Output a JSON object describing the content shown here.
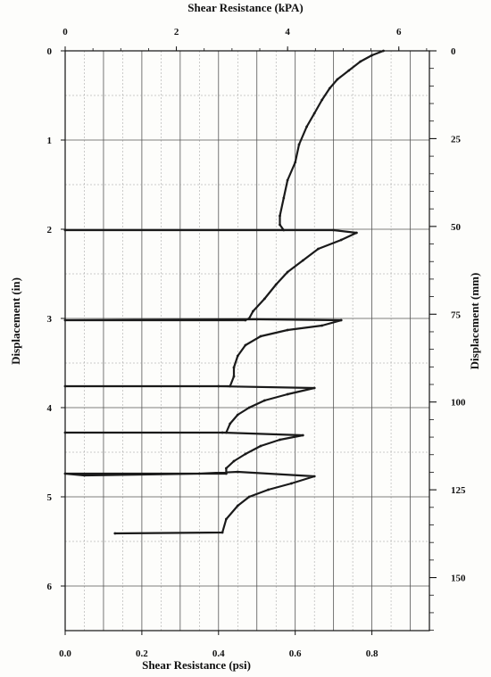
{
  "chart_data": {
    "type": "line",
    "title": "",
    "x_bottom": {
      "label": "Shear Resistance (psi)",
      "range": [
        0,
        0.95
      ],
      "ticks": [
        "0.0",
        "0.2",
        "0.4",
        "0.6",
        "0.8"
      ]
    },
    "x_top": {
      "label": "Shear Resistance (kPA)",
      "range": [
        0,
        6.55
      ],
      "ticks": [
        "0",
        "2",
        "4",
        "6"
      ]
    },
    "y_left": {
      "label": "Displacement (in)",
      "range": [
        0,
        6.5
      ],
      "inverted": true,
      "ticks": [
        "0",
        "1",
        "2",
        "3",
        "4",
        "5",
        "6"
      ]
    },
    "y_right": {
      "label": "Displacement (mm)",
      "range": [
        0,
        165.1
      ],
      "inverted": true,
      "ticks": [
        "0",
        "25",
        "50",
        "75",
        "100",
        "125",
        "150"
      ]
    },
    "grid": true,
    "series": [
      {
        "x_unit": "psi",
        "y_unit": "in",
        "points": [
          [
            0.83,
            0.0
          ],
          [
            0.8,
            0.05
          ],
          [
            0.77,
            0.12
          ],
          [
            0.74,
            0.22
          ],
          [
            0.71,
            0.32
          ],
          [
            0.69,
            0.42
          ],
          [
            0.67,
            0.55
          ],
          [
            0.65,
            0.7
          ],
          [
            0.63,
            0.85
          ],
          [
            0.61,
            1.05
          ],
          [
            0.6,
            1.25
          ],
          [
            0.58,
            1.45
          ],
          [
            0.57,
            1.65
          ],
          [
            0.56,
            1.85
          ],
          [
            0.56,
            1.95
          ],
          [
            0.57,
            2.01
          ],
          [
            0.0,
            2.01
          ],
          [
            0.7,
            2.01
          ],
          [
            0.76,
            2.04
          ],
          [
            0.72,
            2.12
          ],
          [
            0.66,
            2.22
          ],
          [
            0.62,
            2.35
          ],
          [
            0.58,
            2.48
          ],
          [
            0.55,
            2.62
          ],
          [
            0.52,
            2.78
          ],
          [
            0.49,
            2.92
          ],
          [
            0.48,
            3.0
          ],
          [
            0.47,
            3.02
          ],
          [
            0.0,
            3.02
          ],
          [
            0.5,
            3.01
          ],
          [
            0.72,
            3.02
          ],
          [
            0.67,
            3.08
          ],
          [
            0.58,
            3.13
          ],
          [
            0.51,
            3.2
          ],
          [
            0.47,
            3.3
          ],
          [
            0.45,
            3.42
          ],
          [
            0.44,
            3.55
          ],
          [
            0.44,
            3.65
          ],
          [
            0.43,
            3.76
          ],
          [
            0.0,
            3.76
          ],
          [
            0.4,
            3.76
          ],
          [
            0.65,
            3.78
          ],
          [
            0.58,
            3.85
          ],
          [
            0.52,
            3.92
          ],
          [
            0.48,
            4.0
          ],
          [
            0.45,
            4.08
          ],
          [
            0.43,
            4.18
          ],
          [
            0.42,
            4.28
          ],
          [
            0.0,
            4.28
          ],
          [
            0.41,
            4.28
          ],
          [
            0.62,
            4.31
          ],
          [
            0.56,
            4.36
          ],
          [
            0.51,
            4.43
          ],
          [
            0.47,
            4.52
          ],
          [
            0.44,
            4.6
          ],
          [
            0.42,
            4.68
          ],
          [
            0.42,
            4.74
          ],
          [
            0.0,
            4.74
          ],
          [
            0.05,
            4.76
          ],
          [
            0.35,
            4.74
          ],
          [
            0.45,
            4.72
          ],
          [
            0.65,
            4.77
          ],
          [
            0.59,
            4.85
          ],
          [
            0.53,
            4.92
          ],
          [
            0.48,
            5.0
          ],
          [
            0.45,
            5.1
          ],
          [
            0.42,
            5.25
          ],
          [
            0.41,
            5.4
          ],
          [
            0.13,
            5.41
          ]
        ]
      }
    ]
  }
}
